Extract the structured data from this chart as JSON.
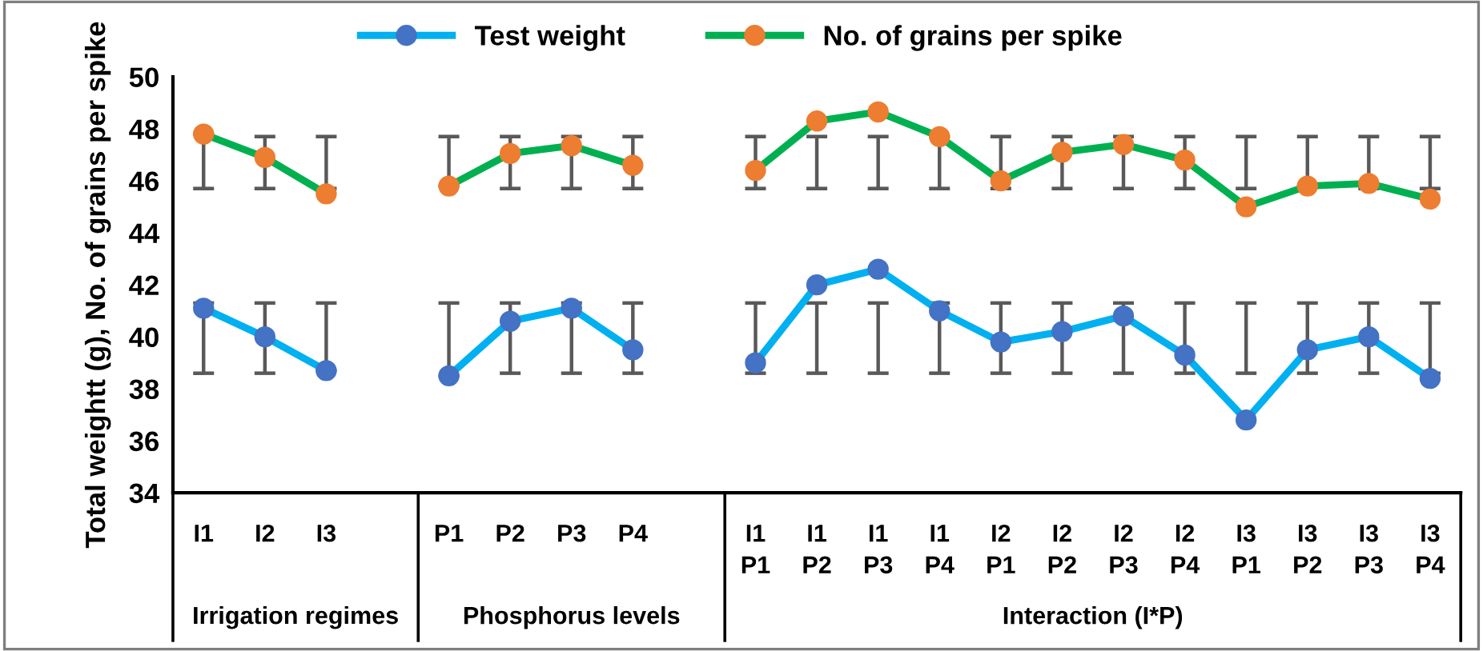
{
  "chart_data": {
    "type": "line",
    "ylabel": "Total weightt (g), No. of grains per spike",
    "categories": [
      "I1",
      "I2",
      "I3",
      null,
      "P1",
      "P2",
      "P3",
      "P4",
      null,
      "I1\nP1",
      "I1\nP2",
      "I1\nP3",
      "I1\nP4",
      "I2\nP1",
      "I2\nP2",
      "I2\nP3",
      "I2\nP4",
      "I3\nP1",
      "I3\nP2",
      "I3\nP3",
      "I3\nP4"
    ],
    "annotations": [
      "Irrigation regimes",
      "Phosphorus levels",
      "Interaction (I*P)"
    ],
    "series": [
      {
        "name": "Test weight",
        "color": "#00b0f0",
        "colors": [
          "#4472c4",
          "#4472c4",
          "#4472c4",
          null,
          "#4472c4",
          "#4472c4",
          "#4472c4",
          "#4472c4",
          null,
          "#4472c4",
          "#4472c4",
          "#4472c4",
          "#4472c4",
          "#4472c4",
          "#4472c4",
          "#4472c4",
          "#4472c4",
          "#4472c4",
          "#4472c4",
          "#4472c4",
          "#4472c4"
        ],
        "values": [
          41.1,
          40.0,
          38.7,
          null,
          38.5,
          40.6,
          41.1,
          39.5,
          null,
          39.0,
          42.0,
          42.6,
          41.0,
          39.8,
          40.2,
          40.8,
          39.3,
          36.8,
          39.5,
          40.0,
          38.4
        ],
        "errors": [
          [
            38.6,
            41.3
          ],
          [
            38.6,
            41.3
          ],
          [
            38.7,
            41.3
          ],
          null,
          [
            38.5,
            41.3
          ],
          [
            38.6,
            41.3
          ],
          [
            38.6,
            41.3
          ],
          [
            38.6,
            41.3
          ],
          null,
          [
            38.6,
            41.3
          ],
          [
            38.6,
            41.3
          ],
          [
            38.6,
            41.3
          ],
          [
            38.6,
            41.3
          ],
          [
            38.6,
            41.3
          ],
          [
            38.6,
            41.3
          ],
          [
            38.6,
            41.3
          ],
          [
            38.6,
            41.3
          ],
          [
            38.6,
            41.3
          ],
          [
            38.6,
            41.3
          ],
          [
            38.6,
            41.3
          ],
          [
            38.6,
            41.3
          ]
        ]
      },
      {
        "name": "No. of grains per spike",
        "color": "#00b050",
        "colors": [
          "#ed7d31",
          "#ed7d31",
          "#ed7d31",
          null,
          "#ed7d31",
          "#ed7d31",
          "#ed7d31",
          "#ed7d31",
          null,
          "#ed7d31",
          "#ed7d31",
          "#ed7d31",
          "#ed7d31",
          "#ed7d31",
          "#ed7d31",
          "#ed7d31",
          "#ed7d31",
          "#ed7d31",
          "#ed7d31",
          "#ed7d31",
          "#ed7d31"
        ],
        "values": [
          47.8,
          46.9,
          45.5,
          null,
          45.8,
          47.05,
          47.35,
          46.6,
          null,
          46.4,
          48.3,
          48.65,
          47.7,
          46.0,
          47.1,
          47.4,
          46.8,
          45.0,
          45.8,
          45.9,
          45.3
        ],
        "errors": [
          [
            45.7,
            47.8
          ],
          [
            45.7,
            47.7
          ],
          [
            45.7,
            47.7
          ],
          null,
          [
            45.8,
            47.7
          ],
          [
            45.7,
            47.7
          ],
          [
            45.7,
            47.7
          ],
          [
            45.7,
            47.7
          ],
          null,
          [
            45.7,
            47.7
          ],
          [
            45.7,
            47.7
          ],
          [
            45.7,
            47.7
          ],
          [
            45.7,
            47.7
          ],
          [
            45.7,
            47.7
          ],
          [
            45.7,
            47.7
          ],
          [
            45.7,
            47.7
          ],
          [
            45.7,
            47.7
          ],
          [
            45.7,
            47.7
          ],
          [
            45.8,
            47.7
          ],
          [
            45.7,
            47.7
          ],
          [
            45.7,
            47.7
          ]
        ]
      }
    ],
    "ylim": [
      34,
      50
    ],
    "yticks": [
      34,
      36,
      38,
      40,
      42,
      44,
      46,
      48,
      50
    ],
    "marker": "circle",
    "line_style": "solid",
    "legend": "top",
    "grid": false
  }
}
